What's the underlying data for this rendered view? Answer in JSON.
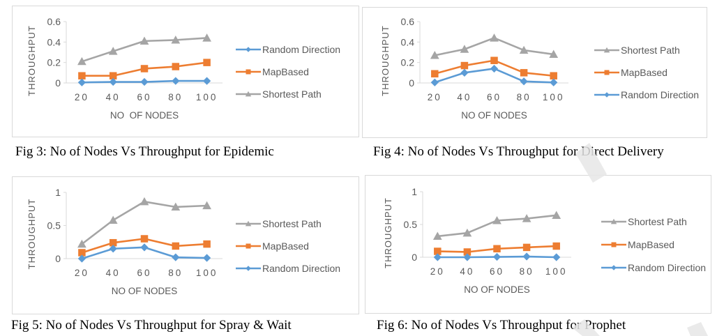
{
  "colors": {
    "random_direction": "#5b9bd5",
    "mapbased": "#ed7d31",
    "shortest_path": "#a5a5a5",
    "axis": "#d9d9d9",
    "text": "#595959"
  },
  "chart_data": [
    {
      "id": "fig3",
      "type": "line",
      "caption": "Fig 3: No of Nodes Vs Throughput for Epidemic",
      "xlabel": "NO  OF NODES",
      "ylabel": "THROUGHPUT",
      "categories": [
        "20",
        "40",
        "60",
        "80",
        "100"
      ],
      "ylim": [
        0,
        0.6
      ],
      "yticks": [
        "0",
        "0.2",
        "0.4",
        "0.6"
      ],
      "ytick_values": [
        0,
        0.2,
        0.4,
        0.6
      ],
      "legend_position": "right",
      "legend_order": [
        "Random Direction",
        "MapBased",
        "Shortest Path"
      ],
      "series": [
        {
          "name": "Random Direction",
          "key": "random_direction",
          "marker": "diamond",
          "values": [
            0.005,
            0.01,
            0.01,
            0.02,
            0.02
          ]
        },
        {
          "name": "MapBased",
          "key": "mapbased",
          "marker": "square",
          "values": [
            0.07,
            0.07,
            0.14,
            0.16,
            0.2
          ]
        },
        {
          "name": "Shortest Path",
          "key": "shortest_path",
          "marker": "triangle",
          "values": [
            0.21,
            0.31,
            0.41,
            0.42,
            0.44
          ]
        }
      ]
    },
    {
      "id": "fig4",
      "type": "line",
      "caption": "Fig 4: No of Nodes Vs Throughput for Direct Delivery",
      "xlabel": "NO OF NODES",
      "ylabel": "THROUGHPUT",
      "categories": [
        "20",
        "40",
        "60",
        "80",
        "100"
      ],
      "ylim": [
        0,
        0.6
      ],
      "yticks": [
        "0",
        "0.2",
        "0.4",
        "0.6"
      ],
      "ytick_values": [
        0,
        0.2,
        0.4,
        0.6
      ],
      "legend_position": "right",
      "legend_order": [
        "Shortest Path",
        "MapBased",
        "Random Direction"
      ],
      "series": [
        {
          "name": "Random Direction",
          "key": "random_direction",
          "marker": "diamond",
          "values": [
            0.005,
            0.1,
            0.14,
            0.015,
            0.005
          ]
        },
        {
          "name": "MapBased",
          "key": "mapbased",
          "marker": "square",
          "values": [
            0.09,
            0.17,
            0.22,
            0.1,
            0.07
          ]
        },
        {
          "name": "Shortest Path",
          "key": "shortest_path",
          "marker": "triangle",
          "values": [
            0.27,
            0.33,
            0.44,
            0.32,
            0.28
          ]
        }
      ]
    },
    {
      "id": "fig5",
      "type": "line",
      "caption": "Fig 5: No of Nodes Vs Throughput for Spray & Wait",
      "xlabel": "NO OF NODES",
      "ylabel": "THROUGHPUT",
      "categories": [
        "20",
        "40",
        "60",
        "80",
        "100"
      ],
      "ylim": [
        0,
        1
      ],
      "yticks": [
        "0",
        "0.5",
        "1"
      ],
      "ytick_values": [
        0,
        0.5,
        1
      ],
      "legend_position": "right",
      "legend_order": [
        "Shortest Path",
        "MapBased",
        "Random Direction"
      ],
      "series": [
        {
          "name": "Random Direction",
          "key": "random_direction",
          "marker": "diamond",
          "values": [
            0.0,
            0.15,
            0.17,
            0.02,
            0.01
          ]
        },
        {
          "name": "MapBased",
          "key": "mapbased",
          "marker": "square",
          "values": [
            0.09,
            0.24,
            0.3,
            0.19,
            0.22
          ]
        },
        {
          "name": "Shortest Path",
          "key": "shortest_path",
          "marker": "triangle",
          "values": [
            0.22,
            0.58,
            0.86,
            0.78,
            0.8
          ]
        }
      ]
    },
    {
      "id": "fig6",
      "type": "line",
      "caption": "Fig 6: No of Nodes Vs Throughput for Prophet",
      "xlabel": "NO OF NODES",
      "ylabel": "THROUGHPUT",
      "categories": [
        "20",
        "40",
        "60",
        "80",
        "100"
      ],
      "ylim": [
        0,
        1
      ],
      "yticks": [
        "0",
        "0.5",
        "1"
      ],
      "ytick_values": [
        0,
        0.5,
        1
      ],
      "legend_position": "right",
      "legend_order": [
        "Shortest Path",
        "MapBased",
        "Random Direction"
      ],
      "series": [
        {
          "name": "Random Direction",
          "key": "random_direction",
          "marker": "diamond",
          "values": [
            0.0,
            0.0,
            0.005,
            0.01,
            0.0
          ]
        },
        {
          "name": "MapBased",
          "key": "mapbased",
          "marker": "square",
          "values": [
            0.09,
            0.08,
            0.13,
            0.15,
            0.17
          ]
        },
        {
          "name": "Shortest Path",
          "key": "shortest_path",
          "marker": "triangle",
          "values": [
            0.32,
            0.37,
            0.56,
            0.59,
            0.64
          ]
        }
      ]
    }
  ]
}
